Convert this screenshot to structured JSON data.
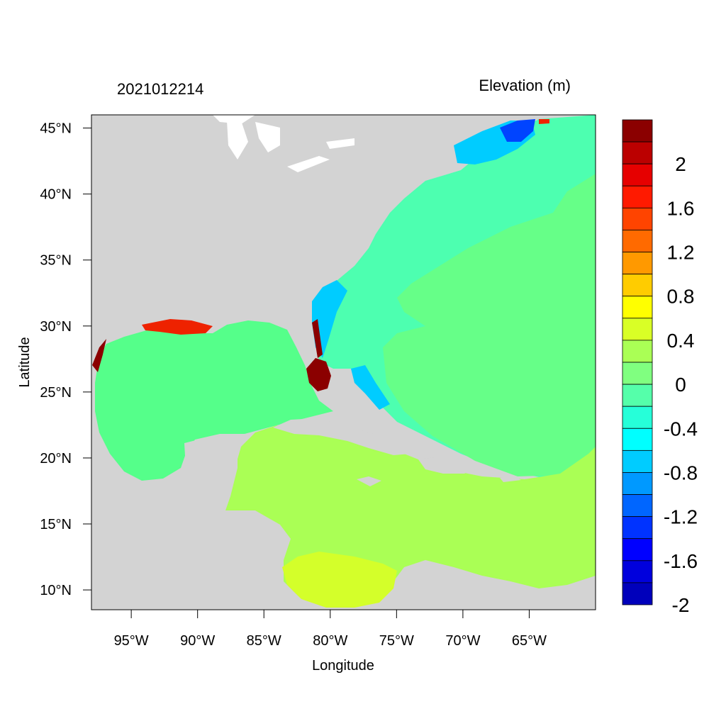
{
  "title_left": "2021012214",
  "title_right": "Elevation (m)",
  "xlabel": "Longitude",
  "ylabel": "Latitude",
  "colors": {
    "land": "#d3d3d3",
    "lakes": "#ffffff",
    "frame": "#000000",
    "gulf_water": "#55ff8a",
    "atlantic_near": "#4dffb0",
    "atlantic_far": "#66ff88",
    "caribbean": "#aaff55",
    "caribbean_south": "#d4ff2a",
    "coastal_negative": "#00ccff",
    "maine_low": "#0044ff",
    "florida_high": "#8b0000",
    "coastal_high": "#ee2200"
  },
  "chart_data": {
    "type": "heatmap",
    "title": "2021012214",
    "subtitle": "Elevation (m)",
    "xlabel": "Longitude",
    "ylabel": "Latitude",
    "xlim": [
      -98,
      -60
    ],
    "ylim": [
      8.5,
      46
    ],
    "x_ticks": [
      {
        "value": -95,
        "label": "95°W"
      },
      {
        "value": -90,
        "label": "90°W"
      },
      {
        "value": -85,
        "label": "85°W"
      },
      {
        "value": -80,
        "label": "80°W"
      },
      {
        "value": -75,
        "label": "75°W"
      },
      {
        "value": -70,
        "label": "70°W"
      },
      {
        "value": -65,
        "label": "65°W"
      }
    ],
    "y_ticks": [
      {
        "value": 45,
        "label": "45°N"
      },
      {
        "value": 40,
        "label": "40°N"
      },
      {
        "value": 35,
        "label": "35°N"
      },
      {
        "value": 30,
        "label": "30°N"
      },
      {
        "value": 25,
        "label": "25°N"
      },
      {
        "value": 20,
        "label": "20°N"
      },
      {
        "value": 15,
        "label": "15°N"
      },
      {
        "value": 10,
        "label": "10°N"
      }
    ],
    "colorbar": {
      "levels": [
        {
          "color": "#8b0000"
        },
        {
          "color": "#bb0000",
          "label": "2"
        },
        {
          "color": "#e60000"
        },
        {
          "color": "#ff1a00",
          "label": "1.6"
        },
        {
          "color": "#ff4400"
        },
        {
          "color": "#ff6a00",
          "label": "1.2"
        },
        {
          "color": "#ff9900"
        },
        {
          "color": "#ffcc00",
          "label": "0.8"
        },
        {
          "color": "#ffff00"
        },
        {
          "color": "#d9ff26",
          "label": "0.4"
        },
        {
          "color": "#aaff55"
        },
        {
          "color": "#80ff80",
          "label": "0"
        },
        {
          "color": "#55ffaa"
        },
        {
          "color": "#26ffd9",
          "label": "-0.4"
        },
        {
          "color": "#00ffff"
        },
        {
          "color": "#00ccff",
          "label": "-0.8"
        },
        {
          "color": "#0099ff"
        },
        {
          "color": "#0066ff",
          "label": "-1.2"
        },
        {
          "color": "#0033ff"
        },
        {
          "color": "#0000ff",
          "label": "-1.6"
        },
        {
          "color": "#0000dd"
        },
        {
          "color": "#0000bb",
          "label": "-2"
        }
      ]
    }
  }
}
